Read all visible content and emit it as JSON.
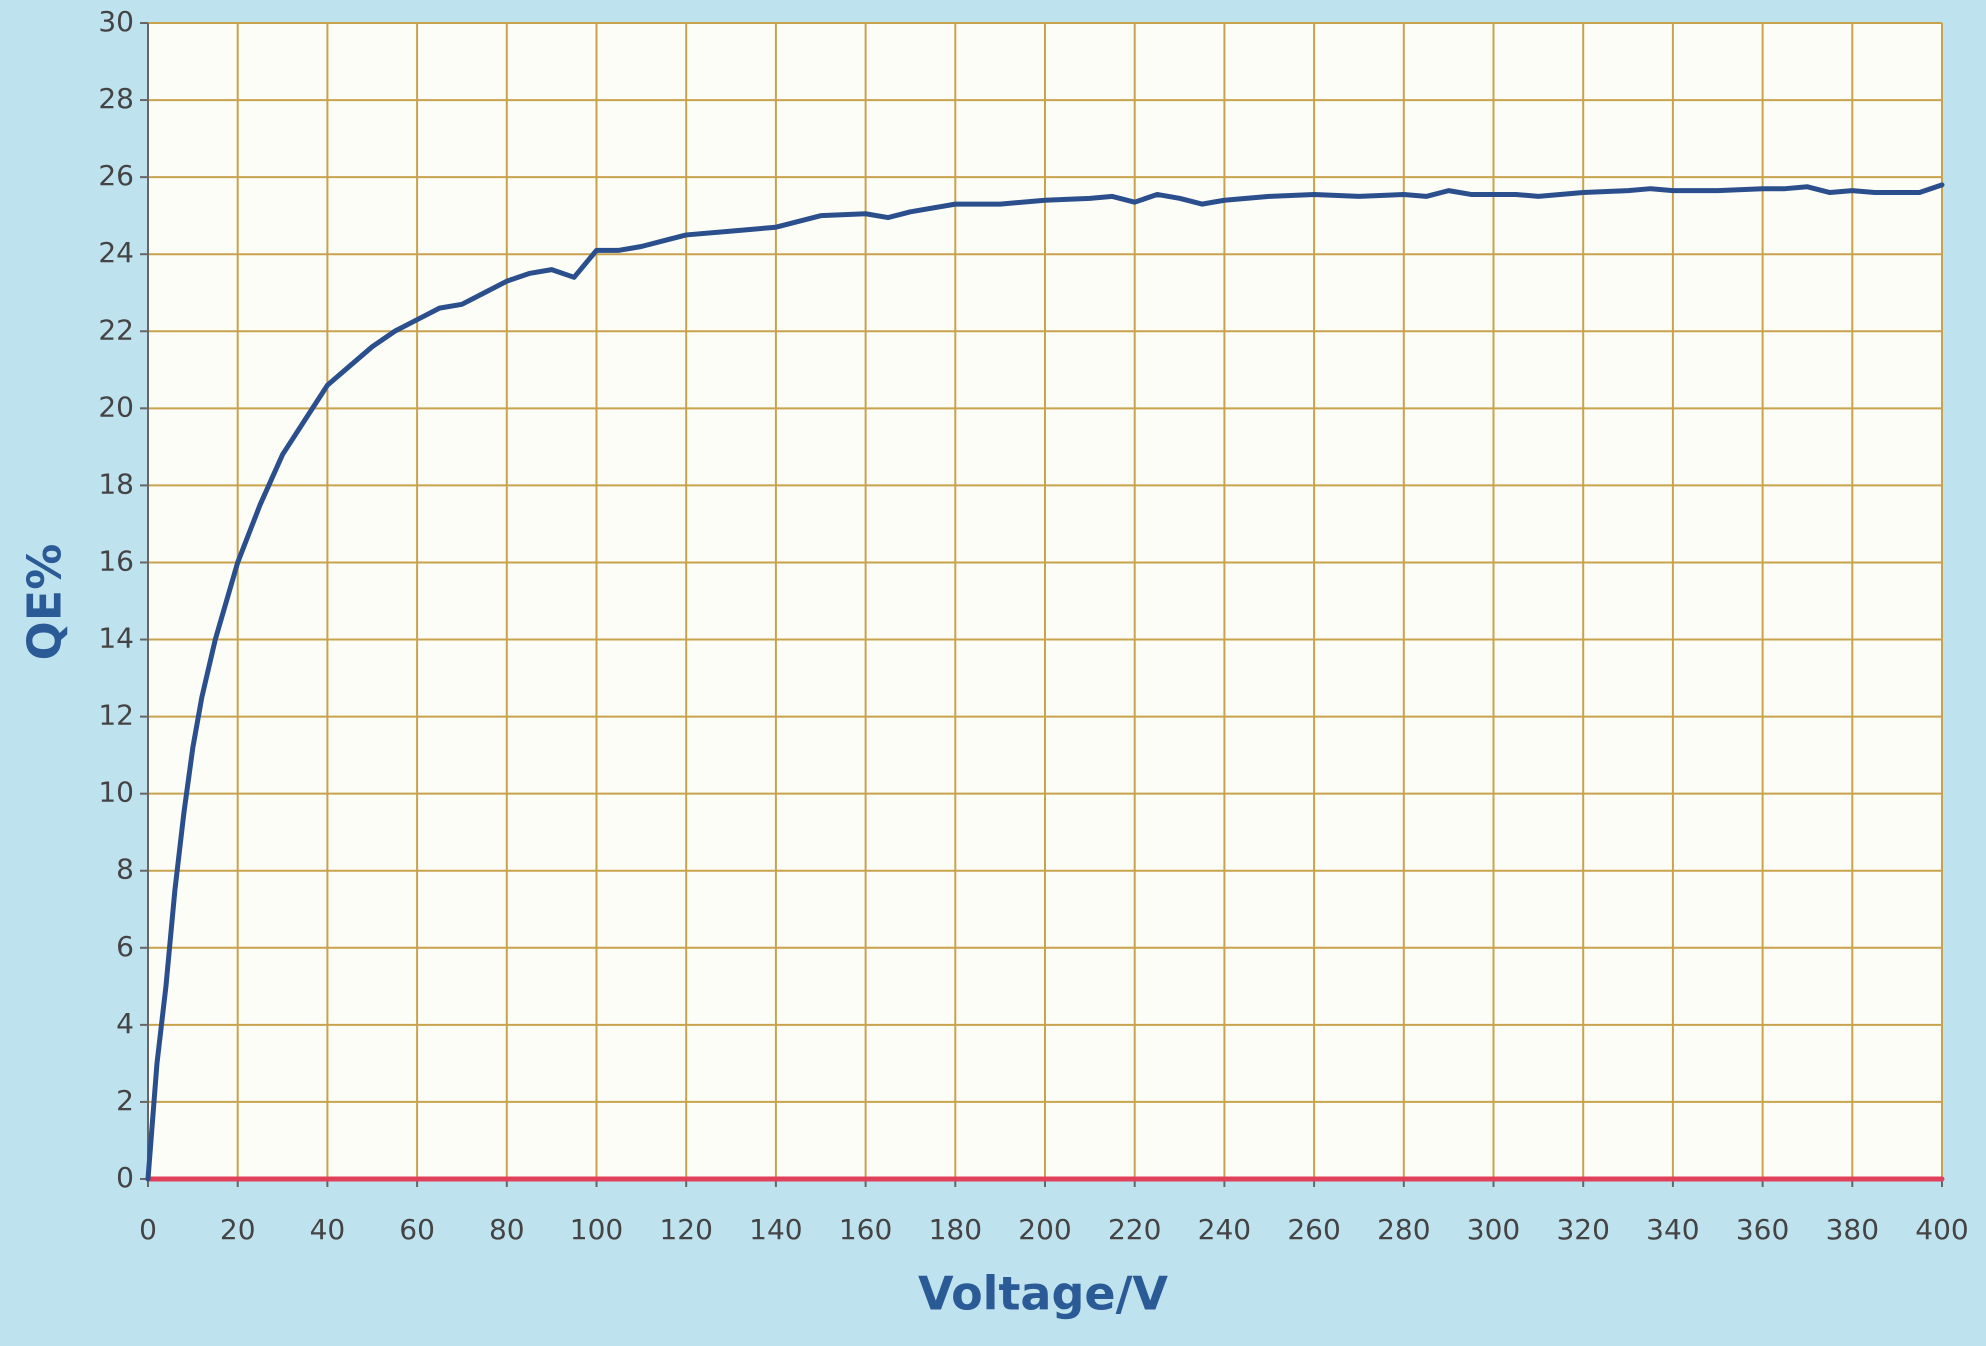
{
  "chart_data": {
    "type": "line",
    "xlabel": "Voltage/V",
    "ylabel": "QE%",
    "x": [
      0,
      1,
      2,
      4,
      6,
      8,
      10,
      12,
      15,
      20,
      25,
      30,
      35,
      40,
      45,
      50,
      55,
      60,
      65,
      70,
      75,
      80,
      85,
      90,
      95,
      100,
      105,
      110,
      115,
      120,
      130,
      140,
      150,
      160,
      165,
      170,
      180,
      190,
      200,
      210,
      215,
      220,
      225,
      230,
      235,
      240,
      250,
      260,
      270,
      280,
      285,
      290,
      295,
      300,
      305,
      310,
      320,
      330,
      335,
      340,
      350,
      360,
      365,
      370,
      375,
      380,
      385,
      395,
      400
    ],
    "series": [
      {
        "color": "#2b4f8c",
        "values": [
          0,
          1.5,
          3,
          5,
          7.5,
          9.5,
          11.2,
          12.5,
          14,
          16,
          17.5,
          18.8,
          19.7,
          20.6,
          21.1,
          21.6,
          22,
          22.3,
          22.6,
          22.7,
          23,
          23.3,
          23.5,
          23.6,
          23.4,
          24.1,
          24.1,
          24.2,
          24.35,
          24.5,
          24.6,
          24.7,
          25,
          25.05,
          24.95,
          25.1,
          25.3,
          25.3,
          25.4,
          25.45,
          25.5,
          25.35,
          25.55,
          25.45,
          25.3,
          25.4,
          25.5,
          25.55,
          25.5,
          25.55,
          25.5,
          25.65,
          25.55,
          25.55,
          25.55,
          25.5,
          25.6,
          25.65,
          25.7,
          25.65,
          25.65,
          25.7,
          25.7,
          25.75,
          25.6,
          25.65,
          25.6,
          25.6,
          25.8
        ]
      },
      {
        "color": "#e0405a",
        "values": [
          0,
          0,
          0,
          0,
          0,
          0,
          0,
          0,
          0,
          0,
          0,
          0,
          0,
          0,
          0,
          0,
          0,
          0,
          0,
          0,
          0,
          0,
          0,
          0,
          0,
          0,
          0,
          0,
          0,
          0,
          0,
          0,
          0,
          0,
          0,
          0,
          0,
          0,
          0,
          0,
          0,
          0,
          0,
          0,
          0,
          0,
          0,
          0,
          0,
          0,
          0,
          0,
          0,
          0,
          0,
          0,
          0,
          0,
          0,
          0,
          0,
          0,
          0,
          0,
          0,
          0,
          0,
          0,
          0
        ]
      }
    ],
    "xlim": [
      0,
      400
    ],
    "xticks": [
      0,
      20,
      40,
      60,
      80,
      100,
      120,
      140,
      160,
      180,
      200,
      220,
      240,
      260,
      280,
      300,
      320,
      340,
      360,
      380,
      400
    ],
    "ylim": [
      0,
      30
    ],
    "yticks": [
      0,
      2,
      4,
      6,
      8,
      10,
      12,
      14,
      16,
      18,
      20,
      22,
      24,
      26,
      28,
      30
    ],
    "grid": true
  }
}
